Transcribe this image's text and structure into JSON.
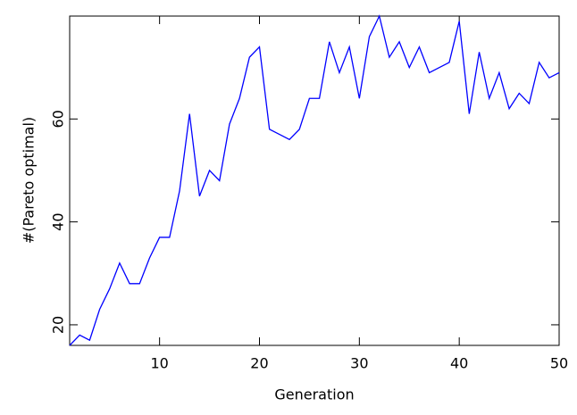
{
  "chart_data": {
    "type": "line",
    "x_label": "Generation",
    "y_label": "#(Pareto optimal)",
    "x": [
      1,
      2,
      3,
      4,
      5,
      6,
      7,
      8,
      9,
      10,
      11,
      12,
      13,
      14,
      15,
      16,
      17,
      18,
      19,
      20,
      21,
      22,
      23,
      24,
      25,
      26,
      27,
      28,
      29,
      30,
      31,
      32,
      33,
      34,
      35,
      36,
      37,
      38,
      39,
      40,
      41,
      42,
      43,
      44,
      45,
      46,
      47,
      48,
      49,
      50
    ],
    "series": [
      {
        "color": "#0000ff",
        "values": [
          16,
          18,
          17,
          23,
          27,
          32,
          28,
          28,
          33,
          37,
          37,
          46,
          61,
          45,
          50,
          48,
          59,
          64,
          72,
          74,
          58,
          57,
          56,
          58,
          64,
          64,
          75,
          69,
          74,
          64,
          76,
          80,
          72,
          75,
          70,
          74,
          69,
          70,
          71,
          79,
          61,
          73,
          64,
          69,
          62,
          65,
          63,
          71,
          68,
          69
        ]
      }
    ],
    "xlim": [
      1,
      50
    ],
    "xticks": [
      10,
      20,
      30,
      40,
      50
    ],
    "ylim": [
      16,
      80
    ],
    "yticks": [
      20,
      40,
      60
    ]
  }
}
